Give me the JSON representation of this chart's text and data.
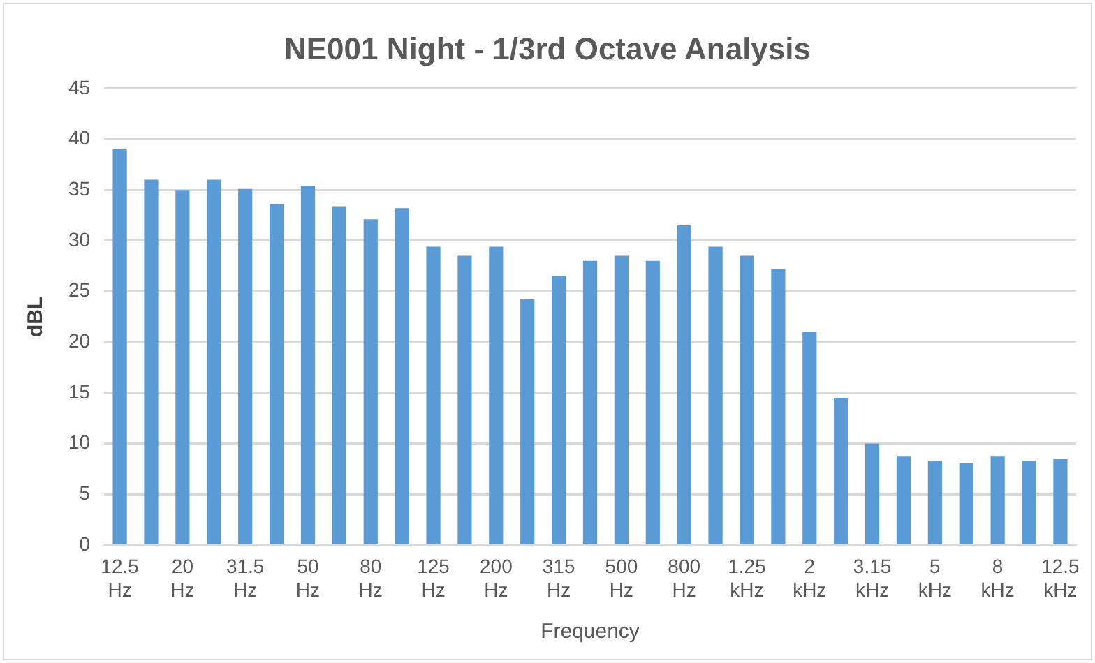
{
  "chart_data": {
    "type": "bar",
    "title": "NE001 Night - 1/3rd Octave Analysis",
    "xlabel": "Frequency",
    "ylabel": "dBL",
    "categories": [
      "12.5 Hz",
      null,
      "20 Hz",
      null,
      "31.5 Hz",
      null,
      "50 Hz",
      null,
      "80 Hz",
      null,
      "125 Hz",
      null,
      "200 Hz",
      null,
      "315 Hz",
      null,
      "500 Hz",
      null,
      "800 Hz",
      null,
      "1.25 kHz",
      null,
      "2 kHz",
      null,
      "3.15 kHz",
      null,
      "5 kHz",
      null,
      "8 kHz",
      null,
      "12.5 kHz"
    ],
    "values": [
      39,
      36,
      35,
      36,
      35.1,
      33.6,
      35.4,
      33.4,
      32.1,
      33.2,
      29.4,
      28.5,
      29.4,
      24.2,
      26.5,
      28,
      28.5,
      28,
      31.5,
      29.4,
      28.5,
      27.2,
      21,
      14.5,
      10,
      8.7,
      8.3,
      8.1,
      8.7,
      8.3,
      8.5
    ],
    "color": "#5b9bd5",
    "ylim": [
      0,
      45
    ],
    "yticks": [
      0,
      5,
      10,
      15,
      20,
      25,
      30,
      35,
      40,
      45
    ],
    "grid": "y",
    "legend": false
  }
}
